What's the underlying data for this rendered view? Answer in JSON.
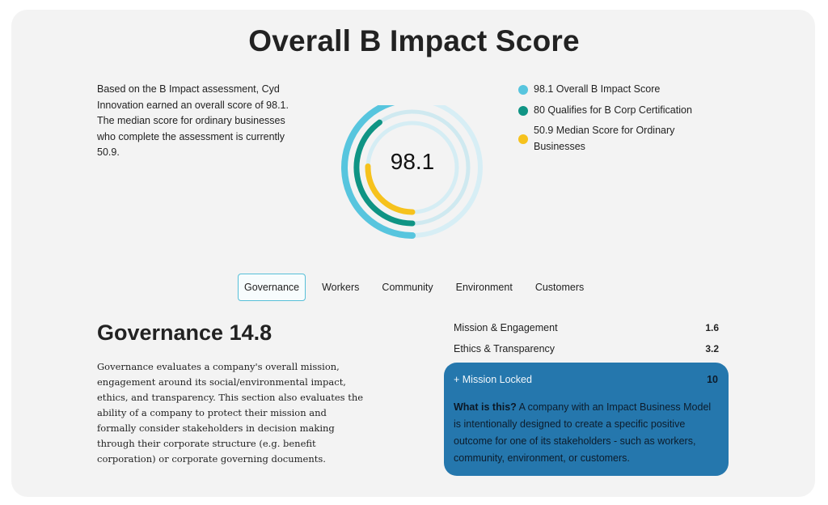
{
  "page": {
    "title": "Overall B Impact Score",
    "intro": "Based on the B Impact assessment, Cyd Innovation earned an overall score of 98.1. The median score for ordinary businesses who complete the assessment is currently 50.9."
  },
  "donut": {
    "center_value": "98.1",
    "max_score": 200,
    "rings": [
      {
        "name": "Overall B Impact Score",
        "value": 98.1,
        "color": "#57c5de",
        "track": "#d7eef5"
      },
      {
        "name": "Qualifies for B Corp Certification",
        "value": 80,
        "color": "#0f9484",
        "track": "#cfe9f0"
      },
      {
        "name": "Median Score for Ordinary Businesses",
        "value": 50.9,
        "color": "#f6c21d",
        "track": "#d5edf4"
      }
    ]
  },
  "legend": [
    {
      "label": "98.1 Overall B Impact Score",
      "color": "#57c5de"
    },
    {
      "label": "80 Qualifies for B Corp Certification",
      "color": "#0f9484"
    },
    {
      "label": "50.9 Median Score for Ordinary Businesses",
      "color": "#f6c21d"
    }
  ],
  "tabs": [
    {
      "label": "Governance",
      "active": true
    },
    {
      "label": "Workers",
      "active": false
    },
    {
      "label": "Community",
      "active": false
    },
    {
      "label": "Environment",
      "active": false
    },
    {
      "label": "Customers",
      "active": false
    }
  ],
  "section": {
    "title": "Governance 14.8",
    "description": "Governance evaluates a company's overall mission, engagement around its social/environmental impact, ethics, and transparency. This section also evaluates the ability of a company to protect their mission and formally consider stakeholders in decision making through their corporate structure (e.g. benefit corporation) or corporate governing documents."
  },
  "scores": [
    {
      "label": "Mission & Engagement",
      "value": "1.6"
    },
    {
      "label": "Ethics & Transparency",
      "value": "3.2"
    }
  ],
  "mission_locked": {
    "label": "+ Mission Locked",
    "value": "10",
    "what_label": "What is this?",
    "text": " A company with an Impact Business Model is intentionally designed to create a specific positive outcome for one of its stakeholders - such as workers, community, environment, or customers."
  }
}
